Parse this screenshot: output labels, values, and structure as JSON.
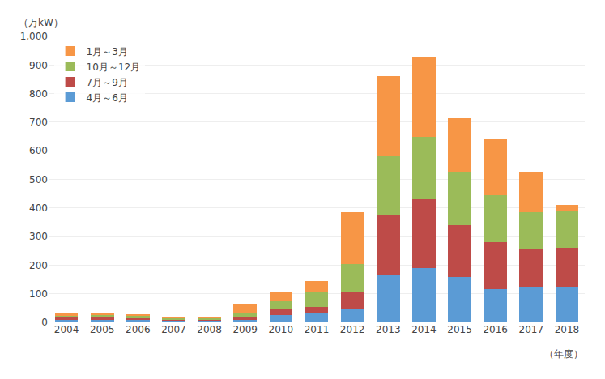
{
  "chart_data": {
    "type": "bar",
    "stacked": true,
    "categories": [
      "2004",
      "2005",
      "2006",
      "2007",
      "2008",
      "2009",
      "2010",
      "2011",
      "2012",
      "2013",
      "2014",
      "2015",
      "2016",
      "2017",
      "2018"
    ],
    "series": [
      {
        "name": "4月～6月",
        "color": "#5B9BD5",
        "values": [
          8,
          9,
          8,
          6,
          6,
          8,
          25,
          30,
          45,
          165,
          190,
          160,
          115,
          125,
          125
        ]
      },
      {
        "name": "7月～9月",
        "color": "#BE4B48",
        "values": [
          8,
          9,
          7,
          5,
          5,
          8,
          20,
          25,
          60,
          210,
          240,
          180,
          165,
          130,
          135
        ]
      },
      {
        "name": "10月～12月",
        "color": "#9BBB59",
        "values": [
          7,
          8,
          7,
          5,
          5,
          15,
          30,
          50,
          100,
          205,
          220,
          185,
          165,
          130,
          130
        ]
      },
      {
        "name": "1月～3月",
        "color": "#F79646",
        "values": [
          7,
          8,
          6,
          4,
          5,
          30,
          30,
          40,
          180,
          280,
          275,
          190,
          195,
          140,
          20
        ]
      }
    ],
    "ylabel": "（万kW）",
    "xlabel": "（年度）",
    "ylim": [
      0,
      1000
    ],
    "yticks": [
      0,
      100,
      200,
      300,
      400,
      500,
      600,
      700,
      800,
      900,
      {
        "value": 1000,
        "label": "1,000"
      }
    ],
    "grid": true,
    "legend": "upper left"
  }
}
